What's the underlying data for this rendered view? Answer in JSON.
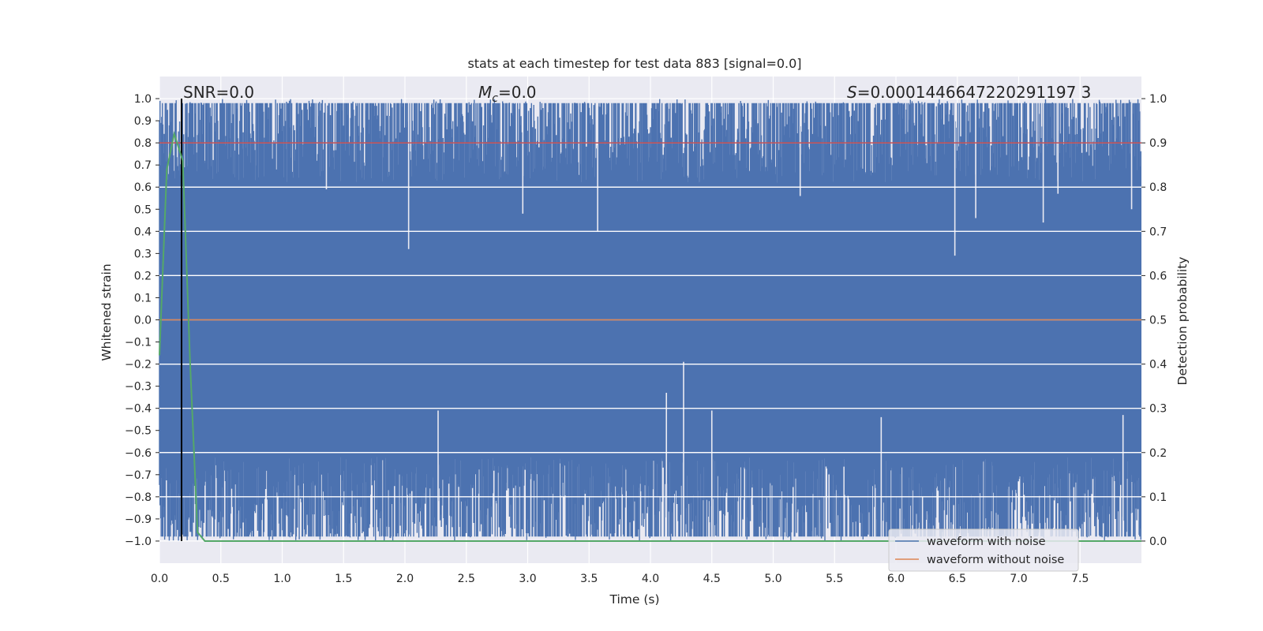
{
  "chart_data": {
    "type": "line",
    "title": "stats at each timestep for test data 883 [signal=0.0]",
    "xlabel": "Time (s)",
    "ylabel": "Whitened strain",
    "ylabel_right": "Detection probability",
    "xlim": [
      0.0,
      8.0
    ],
    "ylim": [
      -1.1,
      1.1
    ],
    "ylim_right": [
      -0.05,
      1.05
    ],
    "x_ticks": [
      "0.0",
      "0.5",
      "1.0",
      "1.5",
      "2.0",
      "2.5",
      "3.0",
      "3.5",
      "4.0",
      "4.5",
      "5.0",
      "5.5",
      "6.0",
      "6.5",
      "7.0",
      "7.5"
    ],
    "y_ticks": [
      "1.0",
      "0.9",
      "0.8",
      "0.7",
      "0.6",
      "0.5",
      "0.4",
      "0.3",
      "0.2",
      "0.1",
      "0.0",
      "−0.1",
      "−0.2",
      "−0.3",
      "−0.4",
      "−0.5",
      "−0.6",
      "−0.7",
      "−0.8",
      "−0.9",
      "−1.0"
    ],
    "y_ticks_right": [
      "1.0",
      "0.9",
      "0.8",
      "0.7",
      "0.6",
      "0.5",
      "0.4",
      "0.3",
      "0.2",
      "0.1",
      "0.0"
    ],
    "grid": true,
    "legend_position": "bottom-right",
    "annotations": {
      "snr": "SNR=0.0",
      "mc_symbol": "M",
      "mc_sub": "c",
      "mc_value": "=0.0",
      "s_symbol": "S",
      "s_value": "=0.0001446647220291197 3"
    },
    "series": [
      {
        "name": "waveform with noise",
        "color": "#4c72b0",
        "description_values": "clipped whitened noise between -1.0 and 1.0",
        "upper_envelope": [
          [
            0.0,
            0.98
          ],
          [
            0.5,
            0.98
          ],
          [
            1.0,
            0.98
          ],
          [
            1.5,
            0.97
          ],
          [
            2.0,
            0.98
          ],
          [
            2.5,
            0.98
          ],
          [
            3.0,
            0.98
          ],
          [
            3.5,
            0.98
          ],
          [
            4.0,
            0.98
          ],
          [
            4.5,
            0.98
          ],
          [
            5.0,
            0.98
          ],
          [
            5.5,
            0.98
          ],
          [
            6.0,
            0.98
          ],
          [
            6.5,
            0.98
          ],
          [
            7.0,
            0.98
          ],
          [
            7.5,
            0.98
          ],
          [
            8.0,
            0.98
          ]
        ],
        "lower_envelope": [
          [
            0.0,
            -0.98
          ],
          [
            0.5,
            -0.98
          ],
          [
            1.0,
            -0.98
          ],
          [
            1.5,
            -0.98
          ],
          [
            2.0,
            -0.98
          ],
          [
            2.5,
            -0.98
          ],
          [
            3.0,
            -0.98
          ],
          [
            3.5,
            -0.98
          ],
          [
            4.0,
            -0.98
          ],
          [
            4.5,
            -0.98
          ],
          [
            5.0,
            -0.98
          ],
          [
            5.5,
            -0.98
          ],
          [
            6.0,
            -0.98
          ],
          [
            6.5,
            -0.98
          ],
          [
            7.0,
            -0.98
          ],
          [
            7.5,
            -0.98
          ],
          [
            8.0,
            -0.98
          ]
        ],
        "top_dips": [
          [
            1.36,
            0.59
          ],
          [
            2.03,
            0.32
          ],
          [
            2.96,
            0.48
          ],
          [
            3.57,
            0.4
          ],
          [
            5.22,
            0.56
          ],
          [
            6.48,
            0.29
          ],
          [
            6.65,
            0.46
          ],
          [
            7.2,
            0.44
          ],
          [
            7.32,
            0.57
          ],
          [
            7.92,
            0.5
          ]
        ],
        "bottom_spikes": [
          [
            2.27,
            -0.41
          ],
          [
            4.13,
            -0.33
          ],
          [
            4.27,
            -0.19
          ],
          [
            4.5,
            -0.41
          ],
          [
            5.88,
            -0.44
          ],
          [
            7.85,
            -0.43
          ]
        ]
      },
      {
        "name": "waveform without noise",
        "color": "#dd8452",
        "x": [
          0.0,
          8.0
        ],
        "y": [
          0.0,
          0.0
        ]
      },
      {
        "name": "",
        "color": "#55a868",
        "axis": "right",
        "x": [
          0.0,
          0.06,
          0.12,
          0.19,
          0.25,
          0.31,
          0.37,
          8.0
        ],
        "y": [
          0.42,
          0.84,
          0.92,
          0.86,
          0.4,
          0.02,
          0.0,
          0.0
        ]
      }
    ],
    "reference_lines": [
      {
        "orientation": "horizontal",
        "axis": "right",
        "value": 0.9,
        "color": "#c44e52"
      },
      {
        "orientation": "vertical",
        "value": 0.18,
        "color": "#000000"
      }
    ]
  }
}
